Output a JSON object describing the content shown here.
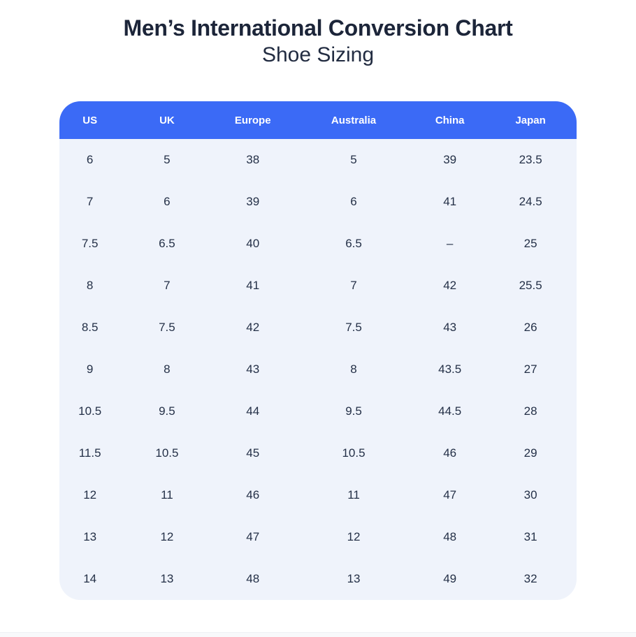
{
  "header": {
    "title": "Men’s International Conversion Chart",
    "subtitle": "Shoe Sizing"
  },
  "colors": {
    "header_bg": "#3B6AF6",
    "header_text": "#FFFFFF",
    "body_bg": "#EFF3FB",
    "cell_text": "#243047",
    "title_text": "#1C2539",
    "bottom_strip": "#F8F9FB"
  },
  "chart_data": {
    "type": "table",
    "title": "Men’s International Conversion Chart",
    "subtitle": "Shoe Sizing",
    "columns": [
      "US",
      "UK",
      "Europe",
      "Australia",
      "China",
      "Japan"
    ],
    "column_widths_pct": [
      11.8,
      18.0,
      15.2,
      23.8,
      13.4,
      17.8
    ],
    "rows": [
      [
        "6",
        "5",
        "38",
        "5",
        "39",
        "23.5"
      ],
      [
        "7",
        "6",
        "39",
        "6",
        "41",
        "24.5"
      ],
      [
        "7.5",
        "6.5",
        "40",
        "6.5",
        "–",
        "25"
      ],
      [
        "8",
        "7",
        "41",
        "7",
        "42",
        "25.5"
      ],
      [
        "8.5",
        "7.5",
        "42",
        "7.5",
        "43",
        "26"
      ],
      [
        "9",
        "8",
        "43",
        "8",
        "43.5",
        "27"
      ],
      [
        "10.5",
        "9.5",
        "44",
        "9.5",
        "44.5",
        "28"
      ],
      [
        "11.5",
        "10.5",
        "45",
        "10.5",
        "46",
        "29"
      ],
      [
        "12",
        "11",
        "46",
        "11",
        "47",
        "30"
      ],
      [
        "13",
        "12",
        "47",
        "12",
        "48",
        "31"
      ],
      [
        "14",
        "13",
        "48",
        "13",
        "49",
        "32"
      ]
    ]
  }
}
